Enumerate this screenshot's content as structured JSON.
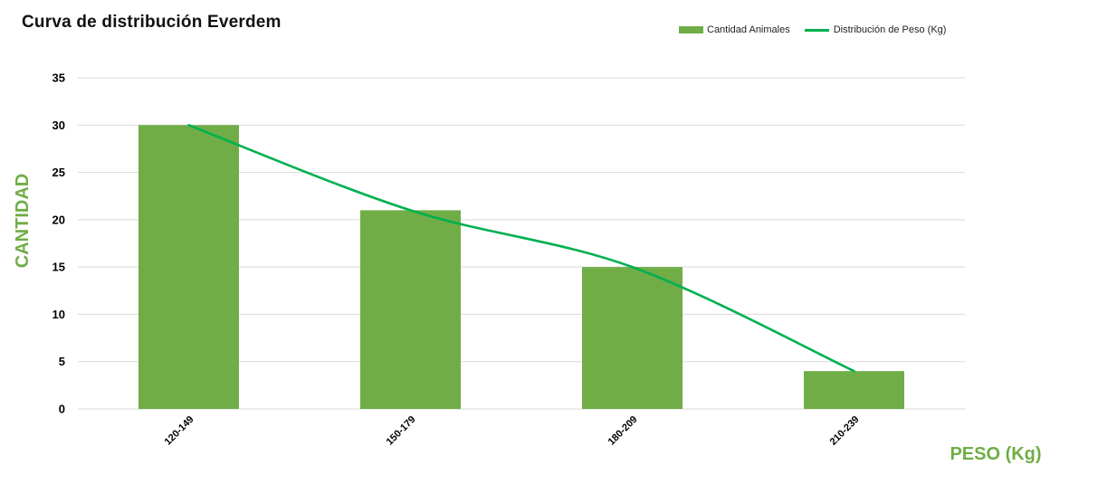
{
  "chart_data": {
    "type": "bar",
    "title": "Curva de distribución Everdem",
    "xlabel": "PESO (Kg)",
    "ylabel": "CANTIDAD",
    "categories": [
      "120-149",
      "150-179",
      "180-209",
      "210-239"
    ],
    "ylim": [
      0,
      35
    ],
    "yticks": [
      0,
      5,
      10,
      15,
      20,
      25,
      30,
      35
    ],
    "grid": true,
    "legend_position": "top-right",
    "series": [
      {
        "name": "Cantidad Animales",
        "type": "bar",
        "values": [
          30,
          21,
          15,
          4
        ],
        "color": "#70AD47"
      },
      {
        "name": "Distribución de Peso (Kg)",
        "type": "line",
        "smooth": true,
        "values": [
          30,
          21,
          15,
          4
        ],
        "color": "#00B050"
      }
    ],
    "axis_label_color": "#70AD47",
    "gridline_color": "#D9D9D9"
  }
}
